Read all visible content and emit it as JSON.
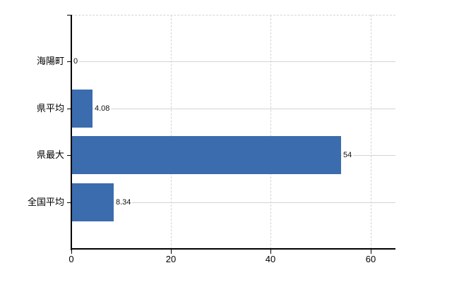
{
  "chart_data": {
    "type": "bar",
    "orientation": "horizontal",
    "categories": [
      "海陽町",
      "県平均",
      "県最大",
      "全国平均"
    ],
    "values": [
      0,
      4.08,
      54,
      8.34
    ],
    "value_labels": [
      "0",
      "4.08",
      "54",
      "8.34"
    ],
    "x_ticks": [
      0,
      20,
      40,
      60
    ],
    "x_tick_labels": [
      "0",
      "20",
      "40",
      "60"
    ],
    "xlim": [
      0,
      65
    ],
    "title": "",
    "xlabel": "",
    "ylabel": "",
    "legend": false,
    "grid": true,
    "bar_color": "#3b6cae",
    "grid_color": "#d4d4d4",
    "axis_color": "#000000",
    "background_color": "#ffffff"
  }
}
